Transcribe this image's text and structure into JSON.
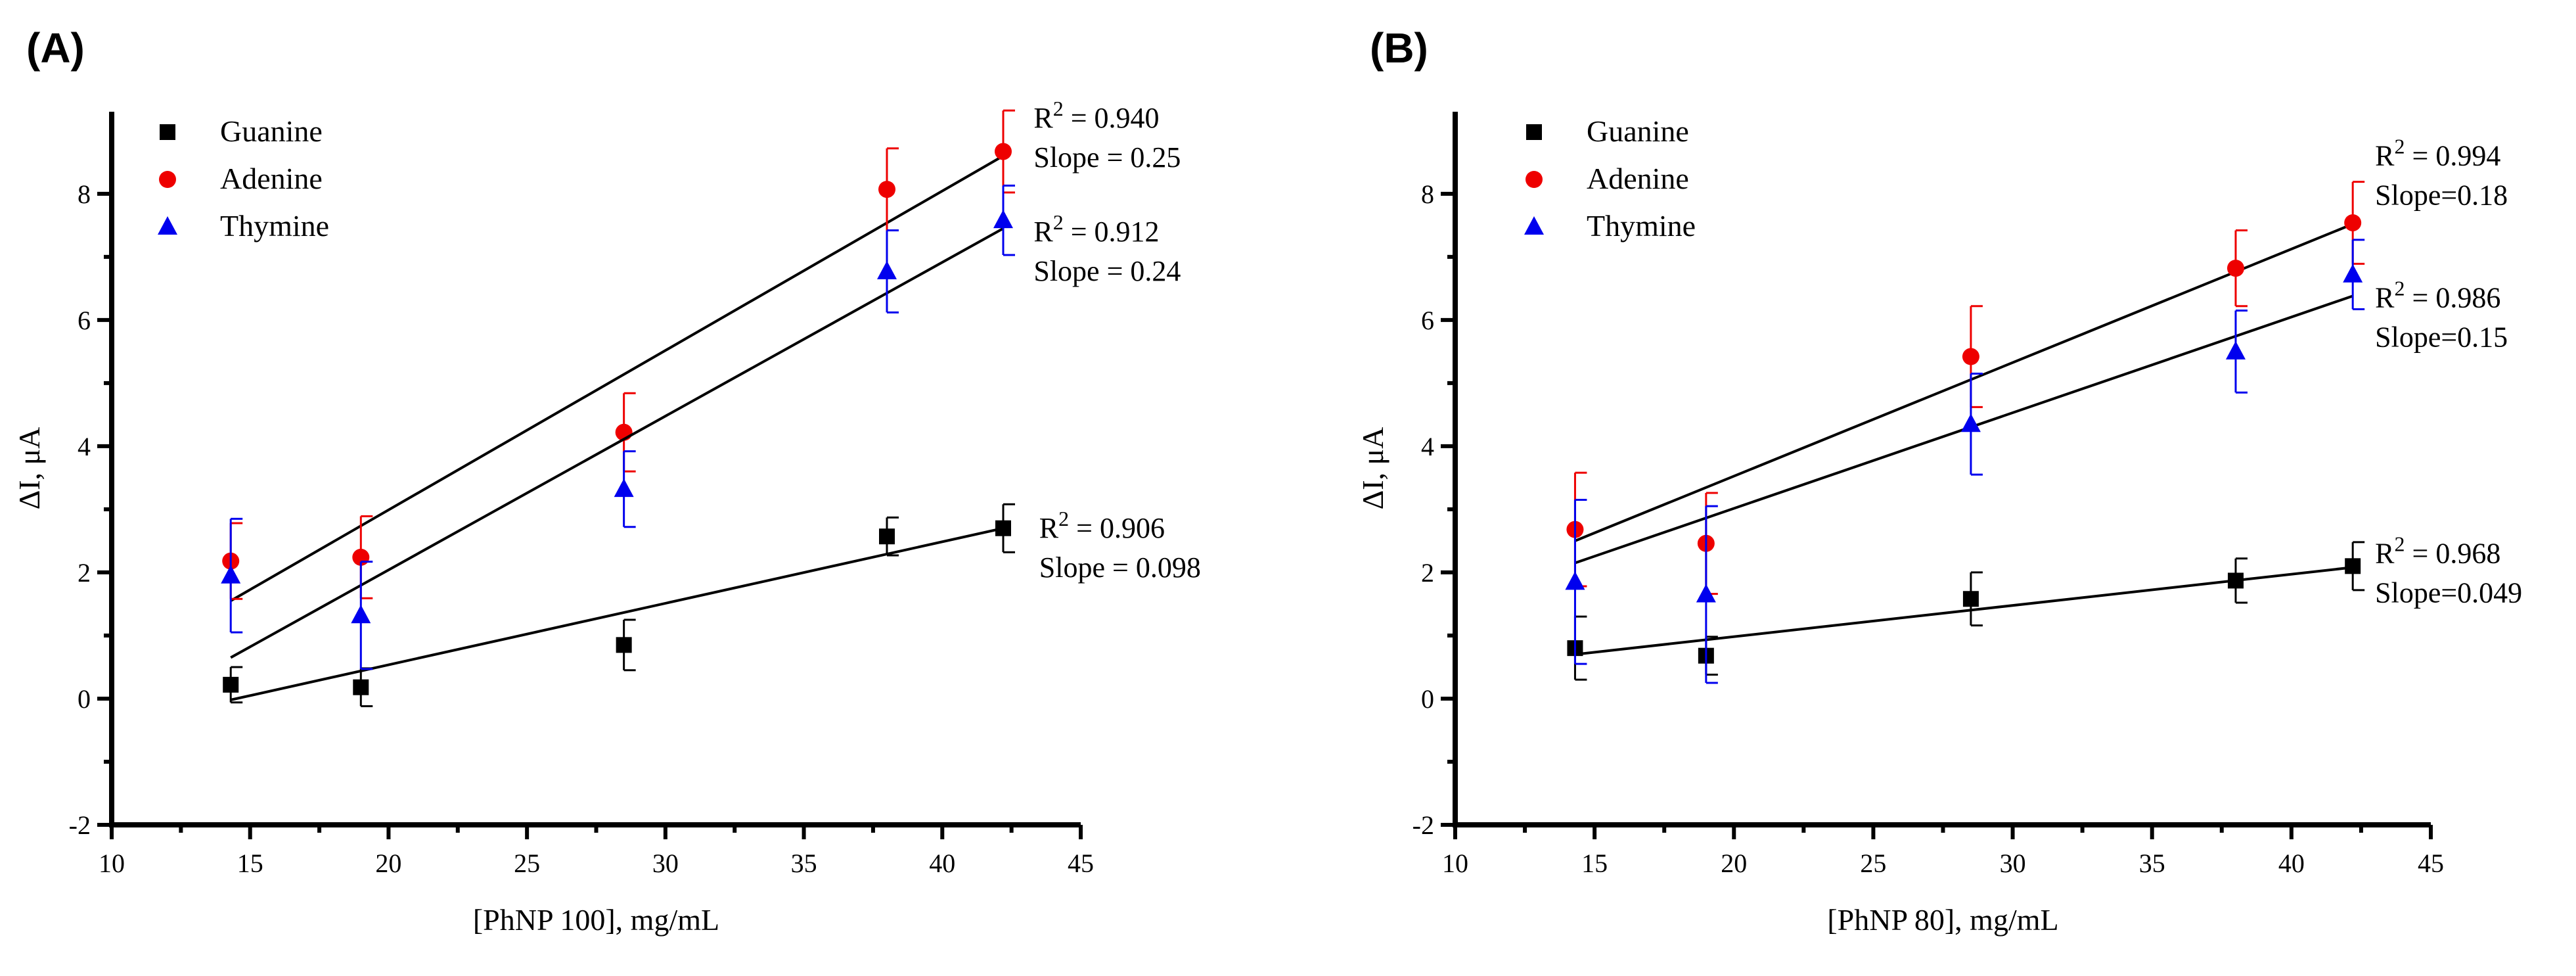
{
  "chart_data": [
    {
      "type": "scatter",
      "panel_label": "(A)",
      "xlabel": "[PhNP 100], mg/mL",
      "ylabel": "ΔI, μA",
      "xlim": [
        10,
        45
      ],
      "ylim": [
        -2,
        9.3
      ],
      "xticks": [
        10,
        15,
        20,
        25,
        30,
        35,
        40,
        45
      ],
      "yticks": [
        -2,
        0,
        2,
        4,
        6,
        8
      ],
      "legend_position": "top-left",
      "series": [
        {
          "name": "Guanine",
          "marker": "square",
          "color": "#000000",
          "x": [
            14.3,
            19.0,
            28.5,
            38.0,
            42.2
          ],
          "y": [
            0.22,
            0.18,
            0.85,
            2.57,
            2.7
          ],
          "err": [
            0.28,
            0.3,
            0.4,
            0.3,
            0.38
          ],
          "fit": {
            "x": [
              14.3,
              42.2
            ],
            "y": [
              -0.02,
              2.7
            ]
          },
          "annotation": {
            "r2": "R",
            "r2_sup": "2",
            "r2_value": " = 0.906",
            "slope": "Slope = 0.098",
            "anchor": [
              43.5,
              2.55
            ]
          }
        },
        {
          "name": "Adenine",
          "marker": "circle",
          "color": "#ee0000",
          "x": [
            14.3,
            19.0,
            28.5,
            38.0,
            42.2
          ],
          "y": [
            2.18,
            2.24,
            4.22,
            8.07,
            8.67
          ],
          "err": [
            0.6,
            0.65,
            0.62,
            0.65,
            0.65
          ],
          "fit": {
            "x": [
              14.3,
              42.2
            ],
            "y": [
              1.55,
              8.6
            ]
          },
          "annotation": {
            "r2": "R",
            "r2_sup": "2",
            "r2_value": " = 0.940",
            "slope": "Slope = 0.25",
            "anchor": [
              43.3,
              9.05
            ]
          }
        },
        {
          "name": "Thymine",
          "marker": "triangle",
          "color": "#0000ee",
          "x": [
            14.3,
            19.0,
            28.5,
            38.0,
            42.2
          ],
          "y": [
            1.95,
            1.32,
            3.32,
            6.77,
            7.58
          ],
          "err": [
            0.9,
            0.85,
            0.6,
            0.65,
            0.55
          ],
          "fit": {
            "x": [
              14.3,
              42.2
            ],
            "y": [
              0.65,
              7.45
            ]
          },
          "annotation": {
            "r2": "R",
            "r2_sup": "2",
            "r2_value": " = 0.912",
            "slope": "Slope = 0.24",
            "anchor": [
              43.3,
              7.25
            ]
          }
        }
      ]
    },
    {
      "type": "scatter",
      "panel_label": "(B)",
      "xlabel": "[PhNP 80], mg/mL",
      "ylabel": "ΔI, μA",
      "xlim": [
        10,
        45
      ],
      "ylim": [
        -2,
        9.3
      ],
      "xticks": [
        10,
        15,
        20,
        25,
        30,
        35,
        40,
        45
      ],
      "yticks": [
        -2,
        0,
        2,
        4,
        6,
        8
      ],
      "legend_position": "top-left",
      "series": [
        {
          "name": "Guanine",
          "marker": "square",
          "color": "#000000",
          "x": [
            14.3,
            19.0,
            28.5,
            38.0,
            42.2
          ],
          "y": [
            0.8,
            0.68,
            1.58,
            1.87,
            2.1
          ],
          "err": [
            0.5,
            0.3,
            0.42,
            0.35,
            0.38
          ],
          "fit": {
            "x": [
              14.3,
              42.2
            ],
            "y": [
              0.7,
              2.08
            ]
          },
          "annotation": {
            "r2": "R",
            "r2_sup": "2",
            "r2_value": " = 0.968",
            "slope": "Slope=0.049",
            "anchor": [
              43.0,
              2.15
            ]
          }
        },
        {
          "name": "Adenine",
          "marker": "circle",
          "color": "#ee0000",
          "x": [
            14.3,
            19.0,
            28.5,
            38.0,
            42.2
          ],
          "y": [
            2.68,
            2.46,
            5.42,
            6.82,
            7.54
          ],
          "err": [
            0.9,
            0.8,
            0.8,
            0.6,
            0.65
          ],
          "fit": {
            "x": [
              14.3,
              42.2
            ],
            "y": [
              2.5,
              7.52
            ]
          },
          "annotation": {
            "r2": "R",
            "r2_sup": "2",
            "r2_value": " = 0.994",
            "slope": "Slope=0.18",
            "anchor": [
              43.0,
              8.45
            ]
          }
        },
        {
          "name": "Thymine",
          "marker": "triangle",
          "color": "#0000ee",
          "x": [
            14.3,
            19.0,
            28.5,
            38.0,
            42.2
          ],
          "y": [
            1.85,
            1.65,
            4.35,
            5.5,
            6.72
          ],
          "err": [
            1.3,
            1.4,
            0.8,
            0.65,
            0.55
          ],
          "fit": {
            "x": [
              14.3,
              42.2
            ],
            "y": [
              2.15,
              6.38
            ]
          },
          "annotation": {
            "r2": "R",
            "r2_sup": "2",
            "r2_value": " = 0.986",
            "slope": "Slope=0.15",
            "anchor": [
              43.0,
              6.2
            ]
          }
        }
      ]
    }
  ]
}
